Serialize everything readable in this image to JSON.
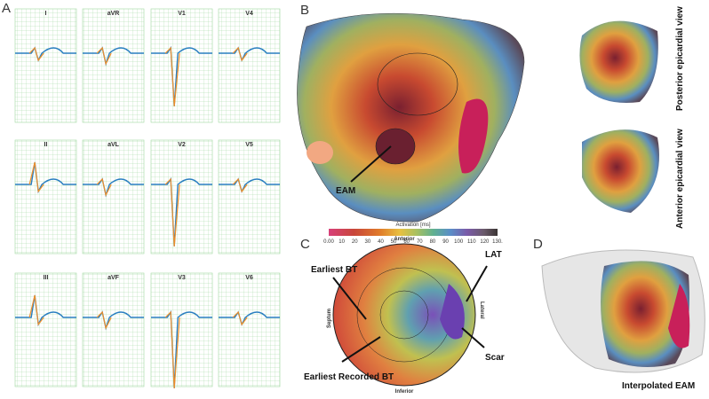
{
  "panels": {
    "a": "A",
    "b": "B",
    "c": "C",
    "d": "D"
  },
  "ecg": {
    "leads": [
      "I",
      "aVR",
      "V1",
      "V4",
      "II",
      "aVL",
      "V2",
      "V5",
      "III",
      "aVF",
      "V3",
      "V6"
    ]
  },
  "panel_b": {
    "annotation": "EAM",
    "views": [
      "Posterior epicardial view",
      "Anterior epicardial view"
    ],
    "colorbar": {
      "title": "Activation [ms]",
      "ticks": [
        "0.00",
        "10",
        "20",
        "30",
        "40",
        "50",
        "60",
        "70",
        "80",
        "90",
        "100",
        "110",
        "120",
        "130."
      ]
    }
  },
  "panel_c": {
    "directions": {
      "top": "Anterior",
      "bottom": "Inferior",
      "left": "Septum",
      "right": "Lateral"
    },
    "annotations": [
      "Earliest BT",
      "Earliest Recorded BT",
      "LAT",
      "Scar"
    ]
  },
  "panel_d": {
    "caption": "Interpolated EAM"
  }
}
